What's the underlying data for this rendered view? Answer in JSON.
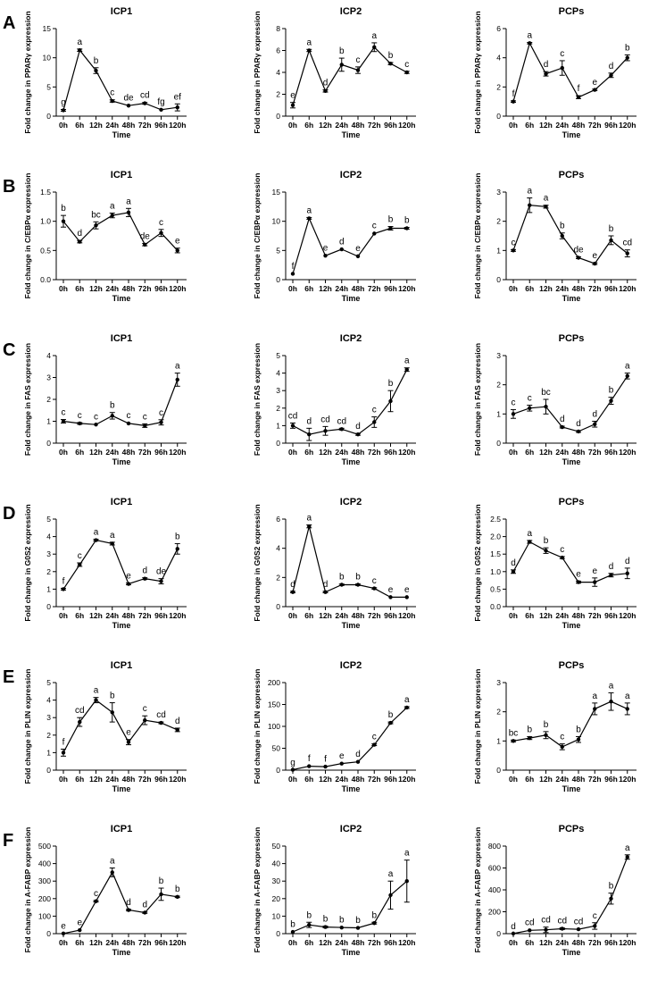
{
  "figure": {
    "shared_x_ticks": [
      "0h",
      "6h",
      "12h",
      "24h",
      "48h",
      "72h",
      "96h",
      "120h"
    ],
    "x_axis_title": "Time",
    "row_labels": [
      "A",
      "B",
      "C",
      "D",
      "E",
      "F"
    ],
    "column_titles": [
      "ICP1",
      "ICP2",
      "PCPs"
    ]
  },
  "chart_data": [
    {
      "id": "A1",
      "panel": "A",
      "type": "line",
      "title": "ICP1",
      "ylabel": "Fold change in PPARγ expression",
      "xlabel": "Time",
      "categories": [
        "0h",
        "6h",
        "12h",
        "24h",
        "48h",
        "72h",
        "96h",
        "120h"
      ],
      "ylim": [
        0,
        15
      ],
      "yticks": [
        0,
        5,
        10,
        15
      ],
      "values": [
        1.0,
        11.3,
        7.8,
        2.6,
        1.8,
        2.2,
        1.1,
        1.5
      ],
      "errors": [
        0.15,
        0.2,
        0.5,
        0.2,
        0.1,
        0.15,
        0.1,
        0.6
      ],
      "letters": [
        "g",
        "a",
        "b",
        "c",
        "de",
        "cd",
        "fg",
        "ef"
      ]
    },
    {
      "id": "A2",
      "panel": "A",
      "type": "line",
      "title": "ICP2",
      "ylabel": "Fold change in PPARγ expression",
      "xlabel": "Time",
      "categories": [
        "0h",
        "6h",
        "12h",
        "24h",
        "48h",
        "72h",
        "96h",
        "120h"
      ],
      "ylim": [
        0,
        8
      ],
      "yticks": [
        0,
        2,
        4,
        6,
        8
      ],
      "values": [
        1.0,
        6.0,
        2.3,
        4.7,
        4.2,
        6.3,
        4.8,
        4.0
      ],
      "errors": [
        0.25,
        0.1,
        0.1,
        0.6,
        0.3,
        0.4,
        0.1,
        0.1
      ],
      "letters": [
        "e",
        "a",
        "d",
        "b",
        "c",
        "a",
        "b",
        "c"
      ]
    },
    {
      "id": "A3",
      "panel": "A",
      "type": "line",
      "title": "PCPs",
      "ylabel": "Fold change in PPARγ expression",
      "xlabel": "Time",
      "categories": [
        "0h",
        "6h",
        "12h",
        "24h",
        "48h",
        "72h",
        "96h",
        "120h"
      ],
      "ylim": [
        0,
        6
      ],
      "yticks": [
        0,
        2,
        4,
        6
      ],
      "values": [
        1.0,
        5.0,
        2.9,
        3.3,
        1.3,
        1.8,
        2.8,
        4.0
      ],
      "errors": [
        0.05,
        0.05,
        0.15,
        0.5,
        0.1,
        0.05,
        0.15,
        0.2
      ],
      "letters": [
        "f",
        "a",
        "d",
        "c",
        "f",
        "e",
        "d",
        "b"
      ]
    },
    {
      "id": "B1",
      "panel": "B",
      "type": "line",
      "title": "ICP1",
      "ylabel": "Fold change in C/EBPα expression",
      "xlabel": "Time",
      "categories": [
        "0h",
        "6h",
        "12h",
        "24h",
        "48h",
        "72h",
        "96h",
        "120h"
      ],
      "ylim": [
        0,
        1.5
      ],
      "yticks": [
        0.0,
        0.5,
        1.0,
        1.5
      ],
      "values": [
        1.0,
        0.65,
        0.93,
        1.1,
        1.15,
        0.6,
        0.8,
        0.5
      ],
      "errors": [
        0.1,
        0.02,
        0.06,
        0.04,
        0.07,
        0.02,
        0.06,
        0.04
      ],
      "letters": [
        "b",
        "d",
        "bc",
        "a",
        "a",
        "de",
        "c",
        "e"
      ]
    },
    {
      "id": "B2",
      "panel": "B",
      "type": "line",
      "title": "ICP2",
      "ylabel": "Fold change in C/EBPα expression",
      "xlabel": "Time",
      "categories": [
        "0h",
        "6h",
        "12h",
        "24h",
        "48h",
        "72h",
        "96h",
        "120h"
      ],
      "ylim": [
        0,
        15
      ],
      "yticks": [
        0,
        5,
        10,
        15
      ],
      "values": [
        1.0,
        10.5,
        4.1,
        5.2,
        4.0,
        7.9,
        8.8,
        8.8
      ],
      "errors": [
        0.1,
        0.15,
        0.1,
        0.1,
        0.1,
        0.1,
        0.3,
        0.15
      ],
      "letters": [
        "f",
        "a",
        "e",
        "d",
        "e",
        "c",
        "b",
        "b"
      ]
    },
    {
      "id": "B3",
      "panel": "B",
      "type": "line",
      "title": "PCPs",
      "ylabel": "Fold change in C/EBPα expression",
      "xlabel": "Time",
      "categories": [
        "0h",
        "6h",
        "12h",
        "24h",
        "48h",
        "72h",
        "96h",
        "120h"
      ],
      "ylim": [
        0,
        3
      ],
      "yticks": [
        0,
        1,
        2,
        3
      ],
      "values": [
        1.0,
        2.55,
        2.5,
        1.5,
        0.75,
        0.55,
        1.35,
        0.9
      ],
      "errors": [
        0.03,
        0.25,
        0.05,
        0.1,
        0.03,
        0.03,
        0.15,
        0.12
      ],
      "letters": [
        "c",
        "a",
        "a",
        "b",
        "de",
        "e",
        "b",
        "cd"
      ]
    },
    {
      "id": "C1",
      "panel": "C",
      "type": "line",
      "title": "ICP1",
      "ylabel": "Fold change in FAS expression",
      "xlabel": "Time",
      "categories": [
        "0h",
        "6h",
        "12h",
        "24h",
        "48h",
        "72h",
        "96h",
        "120h"
      ],
      "ylim": [
        0,
        4
      ],
      "yticks": [
        0,
        1,
        2,
        3,
        4
      ],
      "values": [
        1.0,
        0.9,
        0.85,
        1.25,
        0.9,
        0.8,
        0.95,
        2.9
      ],
      "errors": [
        0.08,
        0.04,
        0.03,
        0.15,
        0.03,
        0.08,
        0.12,
        0.3
      ],
      "letters": [
        "c",
        "c",
        "c",
        "b",
        "c",
        "c",
        "c",
        "a"
      ]
    },
    {
      "id": "C2",
      "panel": "C",
      "type": "line",
      "title": "ICP2",
      "ylabel": "Fold change in FAS expression",
      "xlabel": "Time",
      "categories": [
        "0h",
        "6h",
        "12h",
        "24h",
        "48h",
        "72h",
        "96h",
        "120h"
      ],
      "ylim": [
        0,
        5
      ],
      "yticks": [
        0,
        1,
        2,
        3,
        4,
        5
      ],
      "values": [
        1.0,
        0.5,
        0.7,
        0.8,
        0.5,
        1.2,
        2.4,
        4.2
      ],
      "errors": [
        0.15,
        0.35,
        0.25,
        0.05,
        0.05,
        0.3,
        0.6,
        0.1
      ],
      "letters": [
        "cd",
        "d",
        "cd",
        "cd",
        "d",
        "c",
        "b",
        "a"
      ]
    },
    {
      "id": "C3",
      "panel": "C",
      "type": "line",
      "title": "PCPs",
      "ylabel": "Fold change in FAS expression",
      "xlabel": "Time",
      "categories": [
        "0h",
        "6h",
        "12h",
        "24h",
        "48h",
        "72h",
        "96h",
        "120h"
      ],
      "ylim": [
        0,
        3
      ],
      "yticks": [
        0,
        1,
        2,
        3
      ],
      "values": [
        1.0,
        1.2,
        1.25,
        0.55,
        0.4,
        0.65,
        1.45,
        2.3
      ],
      "errors": [
        0.15,
        0.1,
        0.25,
        0.03,
        0.03,
        0.1,
        0.12,
        0.1
      ],
      "letters": [
        "c",
        "c",
        "bc",
        "d",
        "d",
        "d",
        "b",
        "a"
      ]
    },
    {
      "id": "D1",
      "panel": "D",
      "type": "line",
      "title": "ICP1",
      "ylabel": "Fold change in G0S2 expression",
      "xlabel": "Time",
      "categories": [
        "0h",
        "6h",
        "12h",
        "24h",
        "48h",
        "72h",
        "96h",
        "120h"
      ],
      "ylim": [
        0,
        5
      ],
      "yticks": [
        0,
        1,
        2,
        3,
        4,
        5
      ],
      "values": [
        1.0,
        2.4,
        3.8,
        3.6,
        1.3,
        1.6,
        1.45,
        3.3
      ],
      "errors": [
        0.05,
        0.1,
        0.05,
        0.08,
        0.05,
        0.05,
        0.15,
        0.3
      ],
      "letters": [
        "f",
        "c",
        "a",
        "a",
        "e",
        "d",
        "de",
        "b"
      ]
    },
    {
      "id": "D2",
      "panel": "D",
      "type": "line",
      "title": "ICP2",
      "ylabel": "Fold change in G0S2 expression",
      "xlabel": "Time",
      "categories": [
        "0h",
        "6h",
        "12h",
        "24h",
        "48h",
        "72h",
        "96h",
        "120h"
      ],
      "ylim": [
        0,
        6
      ],
      "yticks": [
        0,
        2,
        4,
        6
      ],
      "values": [
        1.0,
        5.5,
        1.0,
        1.5,
        1.5,
        1.25,
        0.65,
        0.65
      ],
      "errors": [
        0.05,
        0.1,
        0.05,
        0.05,
        0.05,
        0.05,
        0.03,
        0.03
      ],
      "letters": [
        "d",
        "a",
        "d",
        "b",
        "b",
        "c",
        "e",
        "e"
      ]
    },
    {
      "id": "D3",
      "panel": "D",
      "type": "line",
      "title": "PCPs",
      "ylabel": "Fold change in G0S2 expression",
      "xlabel": "Time",
      "categories": [
        "0h",
        "6h",
        "12h",
        "24h",
        "48h",
        "72h",
        "96h",
        "120h"
      ],
      "ylim": [
        0,
        2.5
      ],
      "yticks": [
        0.0,
        0.5,
        1.0,
        1.5,
        2.0,
        2.5
      ],
      "values": [
        1.0,
        1.85,
        1.6,
        1.4,
        0.7,
        0.7,
        0.9,
        0.95
      ],
      "errors": [
        0.05,
        0.04,
        0.08,
        0.03,
        0.03,
        0.12,
        0.05,
        0.15
      ],
      "letters": [
        "d",
        "a",
        "b",
        "c",
        "e",
        "e",
        "d",
        "d"
      ]
    },
    {
      "id": "E1",
      "panel": "E",
      "type": "line",
      "title": "ICP1",
      "ylabel": "Fold change in PLIN expression",
      "xlabel": "Time",
      "categories": [
        "0h",
        "6h",
        "12h",
        "24h",
        "48h",
        "72h",
        "96h",
        "120h"
      ],
      "ylim": [
        0,
        5
      ],
      "yticks": [
        0,
        1,
        2,
        3,
        4,
        5
      ],
      "values": [
        1.0,
        2.75,
        4.0,
        3.3,
        1.6,
        2.85,
        2.7,
        2.3
      ],
      "errors": [
        0.2,
        0.25,
        0.15,
        0.55,
        0.15,
        0.25,
        0.05,
        0.1
      ],
      "letters": [
        "f",
        "cd",
        "a",
        "b",
        "e",
        "c",
        "cd",
        "d"
      ]
    },
    {
      "id": "E2",
      "panel": "E",
      "type": "line",
      "title": "ICP2",
      "ylabel": "Fold change in PLIN expression",
      "xlabel": "Time",
      "categories": [
        "0h",
        "6h",
        "12h",
        "24h",
        "48h",
        "72h",
        "96h",
        "120h"
      ],
      "ylim": [
        0,
        200
      ],
      "yticks": [
        0,
        50,
        100,
        150,
        200
      ],
      "values": [
        1,
        9,
        8,
        15,
        19,
        58,
        108,
        143
      ],
      "errors": [
        0.5,
        1,
        1,
        1,
        1,
        2,
        2,
        2
      ],
      "letters": [
        "g",
        "f",
        "f",
        "e",
        "d",
        "c",
        "b",
        "a"
      ]
    },
    {
      "id": "E3",
      "panel": "E",
      "type": "line",
      "title": "PCPs",
      "ylabel": "Fold change in PLIN expression",
      "xlabel": "Time",
      "categories": [
        "0h",
        "6h",
        "12h",
        "24h",
        "48h",
        "72h",
        "96h",
        "120h"
      ],
      "ylim": [
        0,
        3
      ],
      "yticks": [
        0,
        1,
        2,
        3
      ],
      "values": [
        1.0,
        1.1,
        1.2,
        0.8,
        1.05,
        2.1,
        2.35,
        2.1
      ],
      "errors": [
        0.03,
        0.05,
        0.12,
        0.1,
        0.1,
        0.2,
        0.3,
        0.2
      ],
      "letters": [
        "bc",
        "b",
        "b",
        "c",
        "b",
        "a",
        "a",
        "a"
      ]
    },
    {
      "id": "F1",
      "panel": "F",
      "type": "line",
      "title": "ICP1",
      "ylabel": "Fold change in A-FABP expression",
      "xlabel": "Time",
      "categories": [
        "0h",
        "6h",
        "12h",
        "24h",
        "48h",
        "72h",
        "96h",
        "120h"
      ],
      "ylim": [
        0,
        500
      ],
      "yticks": [
        0,
        100,
        200,
        300,
        400,
        500
      ],
      "values": [
        1,
        20,
        185,
        350,
        135,
        120,
        225,
        210
      ],
      "errors": [
        1,
        2,
        4,
        25,
        4,
        4,
        35,
        4
      ],
      "letters": [
        "e",
        "e",
        "c",
        "a",
        "d",
        "d",
        "b",
        "b"
      ]
    },
    {
      "id": "F2",
      "panel": "F",
      "type": "line",
      "title": "ICP2",
      "ylabel": "Fold change in A-FABP expression",
      "xlabel": "Time",
      "categories": [
        "0h",
        "6h",
        "12h",
        "24h",
        "48h",
        "72h",
        "96h",
        "120h"
      ],
      "ylim": [
        0,
        50
      ],
      "yticks": [
        0,
        10,
        20,
        30,
        40,
        50
      ],
      "values": [
        1,
        5,
        3.8,
        3.5,
        3.3,
        6,
        22,
        30
      ],
      "errors": [
        0.3,
        1.5,
        0.5,
        0.3,
        0.3,
        0.5,
        8,
        12
      ],
      "letters": [
        "b",
        "b",
        "b",
        "b",
        "b",
        "b",
        "a",
        "a"
      ]
    },
    {
      "id": "F3",
      "panel": "F",
      "type": "line",
      "title": "PCPs",
      "ylabel": "Fold change in A-FABP expression",
      "xlabel": "Time",
      "categories": [
        "0h",
        "6h",
        "12h",
        "24h",
        "48h",
        "72h",
        "96h",
        "120h"
      ],
      "ylim": [
        0,
        800
      ],
      "yticks": [
        0,
        200,
        400,
        600,
        800
      ],
      "values": [
        1,
        30,
        35,
        45,
        40,
        70,
        320,
        700
      ],
      "errors": [
        1,
        5,
        25,
        8,
        5,
        30,
        50,
        20
      ],
      "letters": [
        "d",
        "cd",
        "cd",
        "cd",
        "cd",
        "c",
        "b",
        "a"
      ]
    }
  ]
}
